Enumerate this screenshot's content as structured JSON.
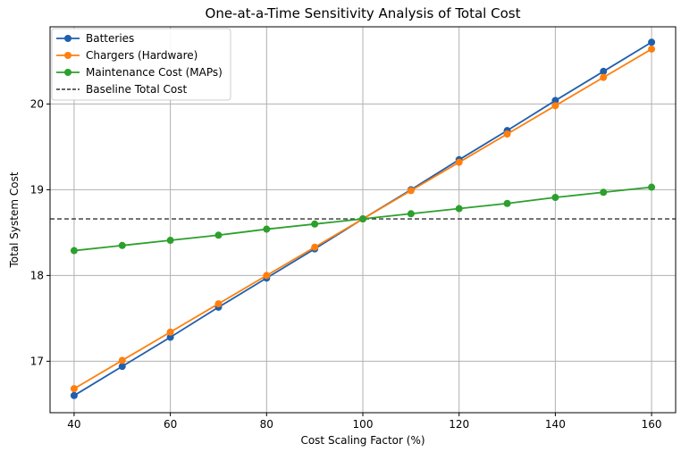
{
  "chart_data": {
    "type": "line",
    "title": "One-at-a-Time Sensitivity Analysis of Total Cost",
    "xlabel": "Cost Scaling Factor (%)",
    "ylabel": "Total System Cost",
    "xlim": [
      35,
      165
    ],
    "ylim": [
      16.4,
      20.9
    ],
    "xticks": [
      40,
      60,
      80,
      100,
      120,
      140,
      160
    ],
    "yticks": [
      17,
      18,
      19,
      20
    ],
    "grid": true,
    "legend_position": "upper-left",
    "x": [
      40,
      50,
      60,
      70,
      80,
      90,
      100,
      110,
      120,
      130,
      140,
      150,
      160
    ],
    "series": [
      {
        "name": "Batteries",
        "color": "#1f5fad",
        "marker": "circle",
        "values": [
          16.6,
          16.94,
          17.28,
          17.63,
          17.97,
          18.31,
          18.66,
          19.0,
          19.35,
          19.69,
          20.04,
          20.38,
          20.72
        ]
      },
      {
        "name": "Chargers (Hardware)",
        "color": "#ff7f0e",
        "marker": "circle",
        "values": [
          16.68,
          17.01,
          17.34,
          17.67,
          18.0,
          18.33,
          18.66,
          18.99,
          19.32,
          19.65,
          19.98,
          20.31,
          20.64
        ]
      },
      {
        "name": "Maintenance Cost (MAPs)",
        "color": "#2ca02c",
        "marker": "circle",
        "values": [
          18.29,
          18.35,
          18.41,
          18.47,
          18.54,
          18.6,
          18.66,
          18.72,
          18.78,
          18.84,
          18.91,
          18.97,
          19.03
        ]
      }
    ],
    "baseline": {
      "name": "Baseline Total Cost",
      "value": 18.66,
      "color": "#333333",
      "style": "dashed"
    }
  }
}
